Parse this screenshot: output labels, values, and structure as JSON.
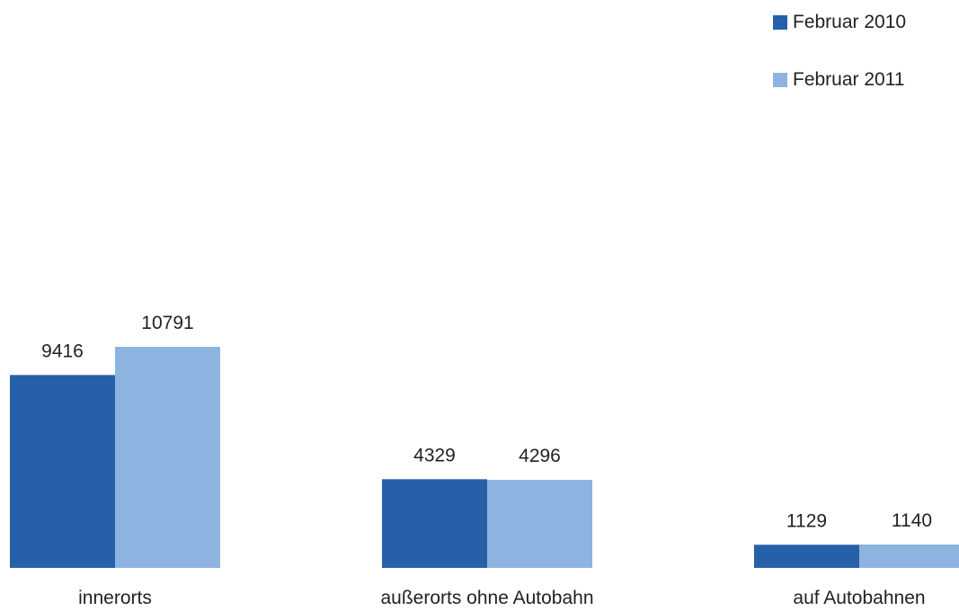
{
  "chart_data": {
    "type": "bar",
    "categories": [
      "innerorts",
      "außerorts ohne Autobahn",
      "auf Autobahnen"
    ],
    "series": [
      {
        "name": "Februar 2010",
        "values": [
          9416,
          4329,
          1129
        ],
        "labels": [
          "9416",
          "4329",
          "1129"
        ],
        "color": "#2660A8"
      },
      {
        "name": "Februar 2011",
        "values": [
          10791,
          4296,
          1140
        ],
        "labels": [
          "10791",
          "4296",
          "1140"
        ],
        "color": "#8DB4E0"
      }
    ],
    "legend_placement": "top-right",
    "grid": false,
    "ylim": [
      0,
      10791
    ]
  }
}
